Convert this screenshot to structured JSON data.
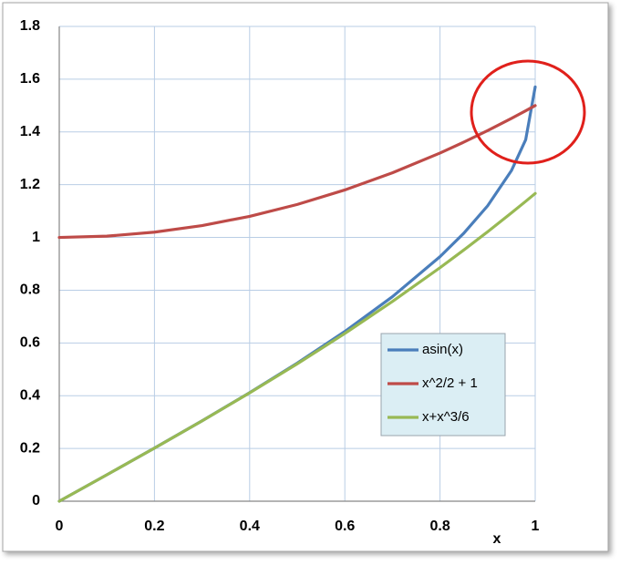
{
  "chart_data": {
    "type": "line",
    "x_label": "x",
    "x": [
      0,
      0.1,
      0.2,
      0.3,
      0.4,
      0.5,
      0.6,
      0.7,
      0.8,
      0.85,
      0.9,
      0.95,
      0.98,
      1
    ],
    "series": [
      {
        "name": "asin(x)",
        "color": "#4a7ebb",
        "values": [
          0,
          0.1002,
          0.2014,
          0.3047,
          0.4115,
          0.5236,
          0.6435,
          0.7754,
          0.9273,
          1.016,
          1.1198,
          1.2532,
          1.3705,
          1.5708
        ]
      },
      {
        "name": "x^2/2 + 1",
        "color": "#be4b48",
        "values": [
          1,
          1.005,
          1.02,
          1.045,
          1.08,
          1.125,
          1.18,
          1.245,
          1.32,
          1.3613,
          1.405,
          1.4513,
          1.4802,
          1.5
        ]
      },
      {
        "name": "x+x^3/6",
        "color": "#98b954",
        "values": [
          0,
          0.1002,
          0.2013,
          0.3045,
          0.4107,
          0.5208,
          0.636,
          0.7572,
          0.8853,
          0.9524,
          1.0215,
          1.0929,
          1.1369,
          1.1667
        ]
      }
    ],
    "xlim": [
      0,
      1
    ],
    "xticks": [
      0,
      0.2,
      0.4,
      0.6,
      0.8,
      1
    ],
    "ylim": [
      0,
      1.8
    ],
    "yticks": [
      0,
      0.2,
      0.4,
      0.6,
      0.8,
      1,
      1.2,
      1.4,
      1.6,
      1.8
    ],
    "grid": true
  }
}
